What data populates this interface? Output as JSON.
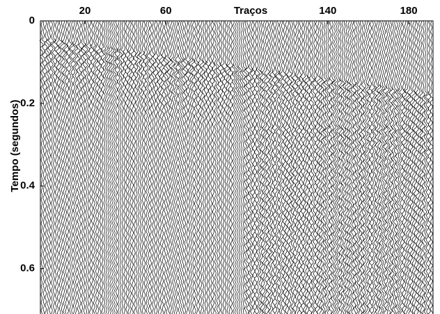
{
  "chart_data": {
    "type": "seismic",
    "xlabel": "Traços",
    "ylabel": "Tempo (segundos)",
    "xlim": [
      -2,
      192
    ],
    "xticks": [
      20,
      60,
      140,
      180
    ],
    "ylim": [
      0,
      0.71
    ],
    "yticks": [
      0,
      0.2,
      0.4,
      0.6
    ],
    "y_inverted": true,
    "color": "#000000"
  }
}
